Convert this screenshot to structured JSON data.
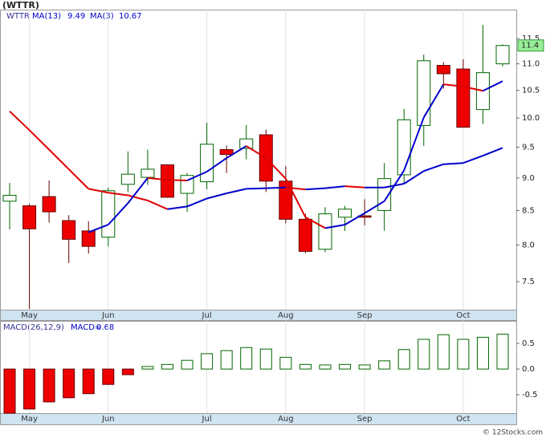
{
  "chart_data": [
    {
      "type": "candlestick",
      "title": "(WTTR)",
      "symbol": "WTTR",
      "log_scale": true,
      "categories": [
        null,
        "May",
        null,
        null,
        null,
        "Jun",
        null,
        null,
        null,
        null,
        "Jul",
        null,
        null,
        null,
        "Aug",
        null,
        null,
        null,
        "Sep",
        null,
        null,
        null,
        null,
        "Oct",
        null,
        null
      ],
      "open": [
        8.64,
        8.57,
        8.71,
        8.35,
        8.2,
        8.11,
        8.9,
        9.01,
        9.21,
        8.76,
        8.94,
        9.46,
        9.48,
        9.71,
        8.95,
        8.37,
        7.94,
        8.4,
        8.42,
        8.5,
        9.05,
        9.87,
        10.97,
        10.9,
        10.15,
        11.0
      ],
      "high": [
        8.92,
        8.6,
        8.96,
        8.43,
        8.34,
        8.85,
        9.43,
        9.46,
        9.22,
        9.08,
        9.92,
        9.53,
        9.88,
        9.8,
        9.19,
        8.45,
        8.55,
        8.57,
        8.67,
        9.24,
        10.16,
        11.18,
        11.03,
        11.09,
        11.78,
        11.38
      ],
      "low": [
        8.22,
        7.15,
        8.32,
        7.75,
        7.88,
        7.98,
        8.78,
        8.89,
        8.69,
        8.48,
        8.82,
        9.08,
        9.3,
        8.78,
        8.31,
        7.88,
        7.9,
        8.2,
        8.28,
        8.2,
        8.91,
        9.52,
        10.53,
        9.84,
        9.9,
        10.95
      ],
      "close": [
        8.73,
        8.23,
        8.48,
        8.08,
        7.98,
        8.8,
        9.06,
        9.14,
        8.7,
        9.04,
        9.55,
        9.38,
        9.64,
        8.95,
        8.37,
        7.91,
        8.45,
        8.52,
        8.4,
        8.99,
        9.97,
        11.06,
        10.81,
        9.84,
        10.83,
        11.36
      ],
      "up_color": "#006600",
      "down_color": "#ee0000",
      "last_price_label": "11.4",
      "series": [
        {
          "name": "MA(13)",
          "values": [
            10.12,
            9.79,
            9.46,
            9.14,
            8.83,
            8.77,
            8.73,
            8.65,
            8.52,
            8.56,
            8.68,
            8.76,
            8.83,
            8.84,
            8.85,
            8.82,
            8.84,
            8.87,
            8.85,
            8.85,
            8.91,
            9.11,
            9.22,
            9.24,
            9.36,
            9.49
          ]
        },
        {
          "name": "MA(3)",
          "values": [
            null,
            null,
            null,
            null,
            8.18,
            8.29,
            8.61,
            9.0,
            8.97,
            8.96,
            9.1,
            9.32,
            9.52,
            9.32,
            8.99,
            8.4,
            8.24,
            8.29,
            8.46,
            8.64,
            9.12,
            10.01,
            10.61,
            10.57,
            10.49,
            10.67
          ]
        }
      ],
      "line_up_color": "#0000cc",
      "line_down_color": "#dd0000",
      "ylim": [
        7.14,
        12.1
      ],
      "yticks": [
        {
          "value": 7.5,
          "label": "7.5"
        },
        {
          "value": 8,
          "label": "8.0"
        },
        {
          "value": 8.5,
          "label": "8.5"
        },
        {
          "value": 9,
          "label": "9.0"
        },
        {
          "value": 9.5,
          "label": "9.5"
        },
        {
          "value": 10,
          "label": "10.0"
        },
        {
          "value": 10.5,
          "label": "10.5"
        },
        {
          "value": 11,
          "label": "11.0"
        },
        {
          "value": 11.5,
          "label": "11.5"
        }
      ]
    },
    {
      "type": "bar",
      "label": "MACD(26,12,9)",
      "current_label": "MACD=",
      "values": [
        -0.86,
        -0.78,
        -0.64,
        -0.56,
        -0.48,
        -0.3,
        -0.11,
        0.05,
        0.09,
        0.17,
        0.3,
        0.36,
        0.42,
        0.39,
        0.23,
        0.09,
        0.08,
        0.09,
        0.08,
        0.16,
        0.38,
        0.58,
        0.67,
        0.58,
        0.62,
        0.68
      ],
      "up_color": "#006600",
      "down_color": "#ee0000",
      "ylim": [
        -0.86,
        0.94
      ],
      "yticks": [
        -0.5,
        {
          "value": 0,
          "label": "0.0"
        },
        0.5
      ]
    }
  ],
  "watermark": "© 12Stocks.com"
}
